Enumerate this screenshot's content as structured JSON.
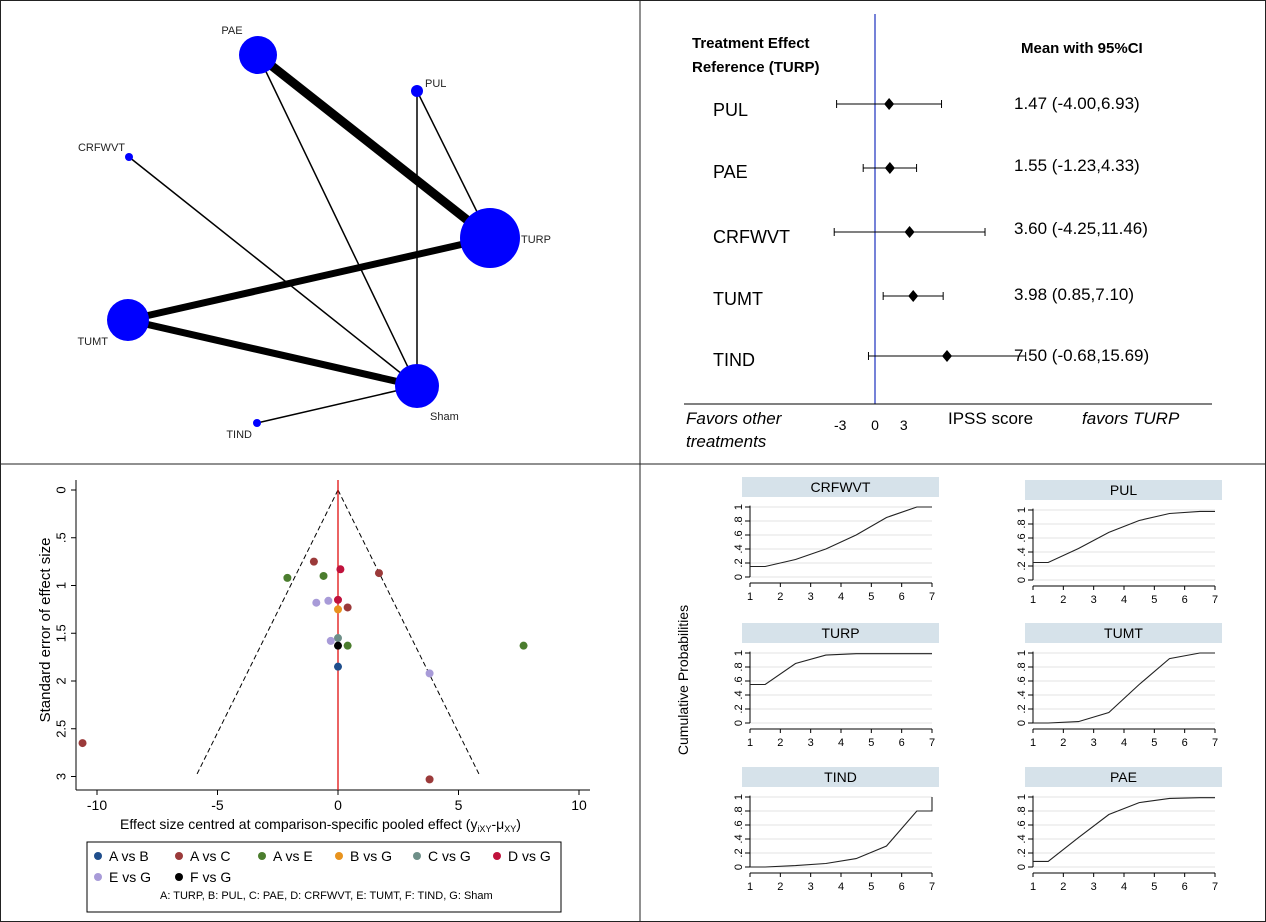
{
  "chart_data": [
    {
      "type": "network",
      "nodes": [
        {
          "label": "PAE",
          "relative_size": "large"
        },
        {
          "label": "PUL",
          "relative_size": "small"
        },
        {
          "label": "CRFWVT",
          "relative_size": "small"
        },
        {
          "label": "TURP",
          "relative_size": "largest"
        },
        {
          "label": "TUMT",
          "relative_size": "large"
        },
        {
          "label": "Sham",
          "relative_size": "large"
        },
        {
          "label": "TIND",
          "relative_size": "small"
        }
      ],
      "edges": [
        {
          "from": "PAE",
          "to": "TURP",
          "weight": 9
        },
        {
          "from": "PAE",
          "to": "Sham",
          "weight": 1.5
        },
        {
          "from": "PUL",
          "to": "TURP",
          "weight": 1.5
        },
        {
          "from": "PUL",
          "to": "Sham",
          "weight": 1.5
        },
        {
          "from": "CRFWVT",
          "to": "Sham",
          "weight": 1.5
        },
        {
          "from": "TUMT",
          "to": "TURP",
          "weight": 7
        },
        {
          "from": "TUMT",
          "to": "Sham",
          "weight": 7
        },
        {
          "from": "TIND",
          "to": "Sham",
          "weight": 1.5
        }
      ]
    },
    {
      "type": "forest",
      "header_left": "Treatment Effect Reference (TURP)",
      "header_right": "Mean with 95%CI",
      "rows": [
        {
          "label": "PUL",
          "mean": 1.47,
          "lower": -4.0,
          "upper": 6.93,
          "text": "1.47 (-4.00,6.93)"
        },
        {
          "label": "PAE",
          "mean": 1.55,
          "lower": -1.23,
          "upper": 4.33,
          "text": "1.55 (-1.23,4.33)"
        },
        {
          "label": "CRFWVT",
          "mean": 3.6,
          "lower": -4.25,
          "upper": 11.46,
          "text": "3.60 (-4.25,11.46)"
        },
        {
          "label": "TUMT",
          "mean": 3.98,
          "lower": 0.85,
          "upper": 7.1,
          "text": "3.98 (0.85,7.10)"
        },
        {
          "label": "TIND",
          "mean": 7.5,
          "lower": -0.68,
          "upper": 15.69,
          "text": "7.50 (-0.68,15.69)"
        }
      ],
      "xticks": [
        "-3",
        "0",
        "3"
      ],
      "xlabel": "IPSS score",
      "left_note": "Favors other treatments",
      "right_note": "favors TURP"
    },
    {
      "type": "scatter",
      "subtype": "comparison-adjusted funnel plot",
      "xlabel": "Effect size centred at comparison-specific pooled effect (y",
      "xlabel_sub": "iXY",
      "xlabel_mid": "-μ",
      "xlabel_sub2": "XY",
      "xlabel_end": ")",
      "ylabel": "Standard error of effect size",
      "xlim": [
        -10.5,
        10.2
      ],
      "ylim": [
        0,
        3.05
      ],
      "xticks": [
        "-10",
        "-5",
        "0",
        "5",
        "10"
      ],
      "yticks": [
        "0",
        ".5",
        "1",
        "1.5",
        "2",
        "2.5",
        "3"
      ],
      "y_reversed": true,
      "reference_line_x": 0,
      "series": [
        {
          "name": "A vs B",
          "color": "#1f4e8c",
          "points": [
            [
              0,
              1.85
            ]
          ]
        },
        {
          "name": "A vs C",
          "color": "#9b3a3a",
          "points": [
            [
              -10.6,
              2.65
            ],
            [
              -1.0,
              0.75
            ],
            [
              1.7,
              0.87
            ],
            [
              0.4,
              1.23
            ],
            [
              3.8,
              3.03
            ]
          ]
        },
        {
          "name": "A vs E",
          "color": "#4b7d2e",
          "points": [
            [
              -2.1,
              0.92
            ],
            [
              -0.6,
              0.9
            ],
            [
              0.4,
              1.63
            ],
            [
              7.7,
              1.63
            ]
          ]
        },
        {
          "name": "B vs G",
          "color": "#e8931e",
          "points": [
            [
              0,
              1.25
            ]
          ]
        },
        {
          "name": "C vs G",
          "color": "#6e8f88",
          "points": [
            [
              0,
              1.55
            ]
          ]
        },
        {
          "name": "D vs G",
          "color": "#c0123c",
          "points": [
            [
              0.1,
              0.83
            ],
            [
              0,
              1.15
            ]
          ]
        },
        {
          "name": "E vs G",
          "color": "#a89bd8",
          "points": [
            [
              -0.9,
              1.18
            ],
            [
              -0.4,
              1.16
            ],
            [
              -0.3,
              1.58
            ],
            [
              3.8,
              1.92
            ]
          ]
        },
        {
          "name": "F vs G",
          "color": "#000000",
          "points": [
            [
              0,
              1.63
            ]
          ]
        }
      ],
      "legend_note": "A: TURP, B: PUL, C: PAE, D: CRFWVT, E: TUMT, F: TIND, G: Sham"
    },
    {
      "type": "line",
      "subtype": "cumulative ranking curves",
      "ylabel": "Cumulative  Probabilities",
      "xticks": [
        "1",
        "2",
        "3",
        "4",
        "5",
        "6",
        "7"
      ],
      "yticks": [
        "0",
        ".2",
        ".4",
        ".6",
        ".8",
        "1"
      ],
      "panels": [
        {
          "title": "CRFWVT",
          "x": [
            1,
            1.5,
            2.5,
            3.5,
            4.5,
            5.5,
            6.5,
            7
          ],
          "y": [
            0.15,
            0.15,
            0.25,
            0.4,
            0.6,
            0.85,
            1.0,
            1.0
          ]
        },
        {
          "title": "PUL",
          "x": [
            1,
            1.5,
            2.5,
            3.5,
            4.5,
            5.5,
            6.5,
            7
          ],
          "y": [
            0.25,
            0.25,
            0.45,
            0.68,
            0.85,
            0.95,
            0.98,
            0.98
          ]
        },
        {
          "title": "TURP",
          "x": [
            1,
            1.5,
            2.5,
            3.5,
            4.5,
            5.5,
            6.5,
            7
          ],
          "y": [
            0.55,
            0.55,
            0.85,
            0.97,
            0.99,
            0.99,
            0.99,
            0.99
          ]
        },
        {
          "title": "TUMT",
          "x": [
            1,
            1.5,
            2.5,
            3.5,
            4.5,
            5.5,
            6.5,
            7
          ],
          "y": [
            0.0,
            0.0,
            0.02,
            0.15,
            0.55,
            0.92,
            1.0,
            1.0
          ]
        },
        {
          "title": "TIND",
          "x": [
            1,
            1.5,
            2.5,
            3.5,
            4.5,
            5.5,
            6.5,
            7,
            7
          ],
          "y": [
            0.0,
            0.0,
            0.02,
            0.05,
            0.12,
            0.3,
            0.8,
            0.8,
            1.0
          ]
        },
        {
          "title": "PAE",
          "x": [
            1,
            1.5,
            2.5,
            3.5,
            4.5,
            5.5,
            6.5,
            7
          ],
          "y": [
            0.08,
            0.08,
            0.42,
            0.75,
            0.92,
            0.98,
            0.99,
            0.99
          ]
        }
      ]
    }
  ]
}
